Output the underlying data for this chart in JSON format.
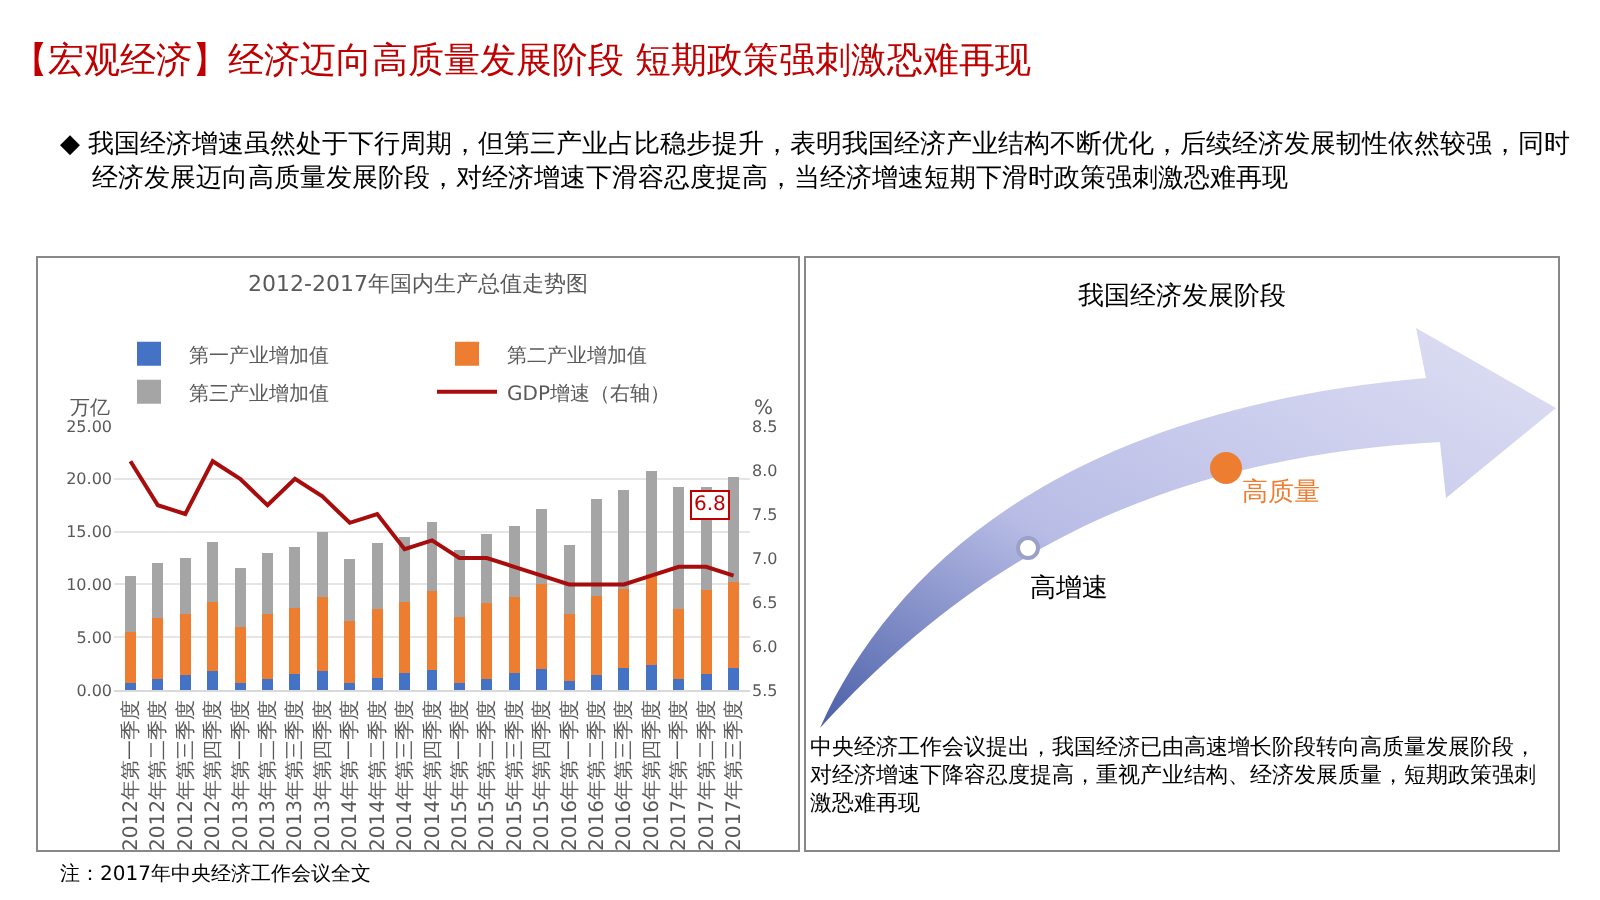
{
  "chart_data": {
    "type": "bar",
    "stacked": true,
    "title": "【宏观经济】经济迈向高质量发展阶段  短期政策强刺激恐难再现",
    "subtitle": "◆ 我国经济增速虽然处于下行周期，但第三产业占比稳步提升，表明我国经济产业结构不断优化，后续经济发展韧性依然较强，同时经济发展迈向高质量发展阶段，对经济增速下滑容忍度提高，当经济增速短期下滑时政策强刺激恐难再现",
    "annotations": [
      "2012-2017年国内生产总值走势图",
      "我国经济发展阶段",
      "高增速",
      "高质量",
      "中央经济工作会议提出，我国经济已由高速增长阶段转向高质量发展阶段，对经济增速下降容忍度提高，重视产业结构、经济发展质量，短期政策强刺激恐难再现",
      "注：2017年中央经济工作会议全文",
      "6.8"
    ],
    "ylabel": "万亿",
    "y2label": "%",
    "categories": [
      "2012年第一季度",
      "2012年第二季度",
      "2012年第三季度",
      "2012年第四季度",
      "2013年第一季度",
      "2013年第二季度",
      "2013年第三季度",
      "2013年第四季度",
      "2014年第一季度",
      "2014年第二季度",
      "2014年第三季度",
      "2014年第四季度",
      "2015年第一季度",
      "2015年第二季度",
      "2015年第三季度",
      "2015年第四季度",
      "2016年第一季度",
      "2016年第二季度",
      "2016年第三季度",
      "2016年第四季度",
      "2017年第一季度",
      "2017年第二季度",
      "2017年第三季度"
    ],
    "series": [
      {
        "name": "第一产业增加值",
        "color": "#4472c4",
        "values": [
          0.7,
          1.0,
          1.4,
          1.8,
          0.7,
          1.0,
          1.5,
          1.8,
          0.7,
          1.1,
          1.6,
          1.9,
          0.7,
          1.0,
          1.6,
          2.0,
          0.9,
          1.4,
          2.1,
          2.4,
          1.0,
          1.5,
          2.1
        ]
      },
      {
        "name": "第二产业增加值",
        "color": "#ed7d31",
        "values": [
          4.8,
          5.8,
          5.8,
          6.5,
          5.3,
          6.2,
          6.3,
          7.0,
          5.8,
          6.6,
          6.7,
          7.5,
          6.2,
          7.2,
          7.2,
          8.0,
          6.3,
          7.5,
          7.5,
          8.6,
          6.7,
          8.0,
          8.1
        ]
      },
      {
        "name": "第三产业增加值",
        "color": "#a5a5a5",
        "values": [
          5.3,
          5.2,
          5.3,
          5.7,
          5.6,
          5.8,
          5.7,
          6.2,
          5.9,
          6.2,
          6.2,
          6.5,
          6.4,
          6.6,
          6.7,
          7.1,
          6.5,
          9.2,
          9.3,
          9.7,
          11.5,
          9.7,
          10.0
        ]
      },
      {
        "name": "GDP增速（右轴）",
        "type": "line",
        "axis": "y2",
        "color": "#a80d0d",
        "values": [
          8.1,
          7.6,
          7.5,
          8.1,
          7.9,
          7.6,
          7.9,
          7.7,
          7.4,
          7.5,
          7.1,
          7.2,
          7.0,
          7.0,
          6.9,
          6.8,
          6.7,
          6.7,
          6.7,
          6.8,
          6.9,
          6.9,
          6.8
        ]
      }
    ],
    "ylim": [
      0,
      25
    ],
    "yticks": [
      {
        "value": 0,
        "label": "0.00"
      },
      {
        "value": 5,
        "label": "5.00"
      },
      {
        "value": 10,
        "label": "10.00"
      },
      {
        "value": 15,
        "label": "15.00"
      },
      {
        "value": 20,
        "label": "20.00"
      },
      {
        "value": 25,
        "label": "25.00"
      }
    ],
    "y2lim": [
      5.5,
      8.5
    ],
    "y2ticks": [
      5.5,
      {
        "value": 6,
        "label": "6.0"
      },
      6.5,
      {
        "value": 7,
        "label": "7.0"
      },
      7.5,
      {
        "value": 8,
        "label": "8.0"
      },
      8.5
    ],
    "grid": "y",
    "legend": "top"
  }
}
